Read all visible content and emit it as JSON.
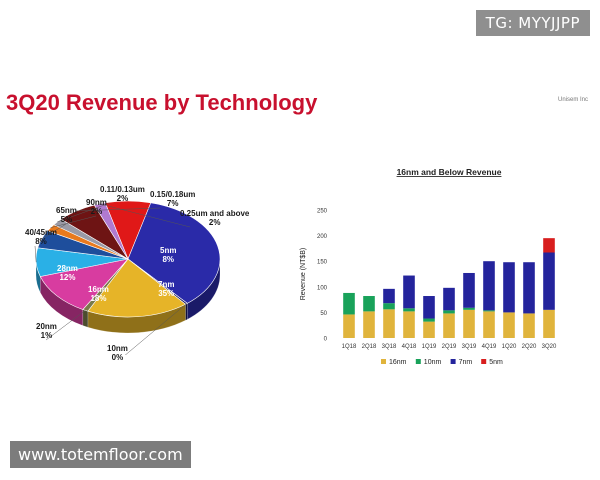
{
  "header": {
    "title": "3Q20 Revenue by Technology",
    "brand": "Unisem Inc"
  },
  "overlays": {
    "tg_badge": "TG: MYYJJPP",
    "watermark": "www.totemfloor.com"
  },
  "colors": {
    "title": "#c8102e",
    "n16": "#e0b43c",
    "n10": "#19a25a",
    "n7": "#24249c",
    "n5": "#d81e1e"
  },
  "chart_data": [
    {
      "type": "pie",
      "title": "",
      "slices": [
        {
          "label": "5nm",
          "value": 8,
          "value_label": "8%",
          "color": "#e01818"
        },
        {
          "label": "7nm",
          "value": 35,
          "value_label": "35%",
          "color": "#2a2aa8"
        },
        {
          "label": "10nm",
          "value": 0,
          "value_label": "0%",
          "color": "#1a1a66"
        },
        {
          "label": "16nm",
          "value": 18,
          "value_label": "18%",
          "color": "#e6b428"
        },
        {
          "label": "20nm",
          "value": 1,
          "value_label": "1%",
          "color": "#7a7a4a"
        },
        {
          "label": "28nm",
          "value": 12,
          "value_label": "12%",
          "color": "#d83ca0"
        },
        {
          "label": "40/45nm",
          "value": 8,
          "value_label": "8%",
          "color": "#2ab0e6"
        },
        {
          "label": "65nm",
          "value": 5,
          "value_label": "5%",
          "color": "#1e4e9c"
        },
        {
          "label": "90nm",
          "value": 2,
          "value_label": "2%",
          "color": "#e87a1e"
        },
        {
          "label": "0.11/0.13um",
          "value": 2,
          "value_label": "2%",
          "color": "#9a9aa6"
        },
        {
          "label": "0.15/0.18um",
          "value": 7,
          "value_label": "7%",
          "color": "#6e1414"
        },
        {
          "label": "0.25um and above",
          "value": 2,
          "value_label": "2%",
          "color": "#b07ad0"
        }
      ]
    },
    {
      "type": "bar",
      "stacked": true,
      "title": "16nm and Below Revenue",
      "ylabel": "Revenue (NT$B)",
      "xlabel": "",
      "ylim": [
        0,
        250
      ],
      "yticks": [
        0,
        50,
        100,
        150,
        200,
        250
      ],
      "categories": [
        "1Q18",
        "2Q18",
        "3Q18",
        "4Q18",
        "1Q19",
        "2Q19",
        "3Q19",
        "4Q19",
        "1Q20",
        "2Q20",
        "3Q20"
      ],
      "series": [
        {
          "name": "16nm",
          "color": "#e0b43c",
          "values": [
            46,
            52,
            56,
            52,
            32,
            48,
            55,
            52,
            50,
            48,
            55
          ]
        },
        {
          "name": "10nm",
          "color": "#19a25a",
          "values": [
            42,
            30,
            12,
            6,
            6,
            6,
            4,
            2,
            0,
            0,
            0
          ]
        },
        {
          "name": "7nm",
          "color": "#24249c",
          "values": [
            0,
            0,
            28,
            64,
            44,
            44,
            68,
            96,
            98,
            100,
            112
          ]
        },
        {
          "name": "5nm",
          "color": "#d81e1e",
          "values": [
            0,
            0,
            0,
            0,
            0,
            0,
            0,
            0,
            0,
            0,
            28
          ]
        }
      ],
      "legend_position": "bottom",
      "grid": false
    }
  ]
}
